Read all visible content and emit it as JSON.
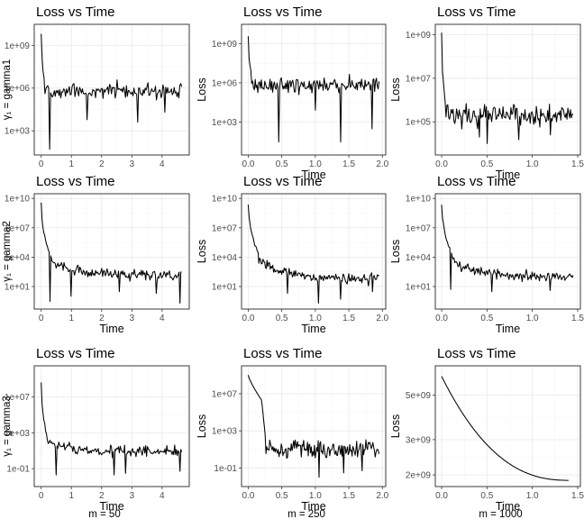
{
  "chart_data": [
    {
      "id": "p00",
      "type": "line",
      "title": "Loss vs Time",
      "xlabel": "",
      "ylabel": "",
      "row_label": "γ₁ = gamma1",
      "col_label": "",
      "y_scale": "log10",
      "xlim": [
        -0.23,
        4.9
      ],
      "ylim": [
        20,
        30000000000.0
      ],
      "xticks": [
        0,
        1,
        2,
        3,
        4
      ],
      "xtick_labels": [
        "0",
        "1",
        "2",
        "3",
        "4"
      ],
      "yticks": [
        1000,
        1000000,
        1000000000
      ],
      "ytick_labels": [
        "1e+03",
        "1e+06",
        "1e+09"
      ],
      "gen": {
        "n": 150,
        "x_end": 4.65,
        "start": 5000000000.0,
        "decay_end": 0.12,
        "decay_to": 2000000.0,
        "mid": 600000.0,
        "spread": 0.55,
        "drops": [
          [
            0.27,
            50
          ],
          [
            3.18,
            4000
          ],
          [
            1.52,
            6000
          ],
          [
            4.1,
            20000
          ]
        ],
        "seed": 11
      }
    },
    {
      "id": "p01",
      "type": "line",
      "title": "Loss vs Time",
      "xlabel": "Time",
      "ylabel": "Loss",
      "row_label": "",
      "col_label": "",
      "y_scale": "log10",
      "xlim": [
        -0.1,
        2.05
      ],
      "ylim": [
        3,
        30000000000.0
      ],
      "xticks": [
        0,
        0.5,
        1,
        1.5,
        2
      ],
      "xtick_labels": [
        "0.0",
        "0.5",
        "1.0",
        "1.5",
        "2.0"
      ],
      "yticks": [
        1000,
        1000000,
        1000000000
      ],
      "ytick_labels": [
        "1e+03",
        "1e+06",
        "1e+09"
      ],
      "gen": {
        "n": 150,
        "x_end": 1.95,
        "start": 5000000000.0,
        "decay_end": 0.05,
        "decay_to": 3000000.0,
        "mid": 700000.0,
        "spread": 0.55,
        "drops": [
          [
            0.45,
            30
          ],
          [
            1.38,
            30
          ],
          [
            1.85,
            300
          ],
          [
            1.0,
            8000
          ]
        ],
        "seed": 23
      }
    },
    {
      "id": "p02",
      "type": "line",
      "title": "Loss vs Time",
      "xlabel": "Time",
      "ylabel": "Loss",
      "row_label": "",
      "col_label": "",
      "y_scale": "log10",
      "xlim": [
        -0.07,
        1.53
      ],
      "ylim": [
        3000,
        3000000000.0
      ],
      "xticks": [
        0,
        0.5,
        1,
        1.5
      ],
      "xtick_labels": [
        "0.0",
        "0.5",
        "1.0",
        "1.5"
      ],
      "yticks": [
        100000,
        10000000,
        1000000000
      ],
      "ytick_labels": [
        "1e+05",
        "1e+07",
        "1e+09"
      ],
      "gen": {
        "n": 150,
        "x_end": 1.45,
        "start": 1000000000.0,
        "decay_end": 0.04,
        "decay_to": 1000000.0,
        "mid": 200000.0,
        "spread": 0.5,
        "drops": [
          [
            0.5,
            10000
          ],
          [
            0.42,
            20000
          ],
          [
            0.85,
            15000
          ],
          [
            1.2,
            25000
          ]
        ],
        "seed": 37
      }
    },
    {
      "id": "p10",
      "type": "line",
      "title": "Loss vs Time",
      "xlabel": "Time",
      "ylabel": "",
      "row_label": "γ₁ = gamma2",
      "col_label": "",
      "y_scale": "log10",
      "xlim": [
        -0.23,
        4.9
      ],
      "ylim": [
        0.05,
        30000000000.0
      ],
      "xticks": [
        0,
        1,
        2,
        3,
        4
      ],
      "xtick_labels": [
        "0",
        "1",
        "2",
        "3",
        "4"
      ],
      "yticks": [
        10,
        10000,
        10000000,
        10000000000
      ],
      "ytick_labels": [
        "1e+01",
        "1e+04",
        "1e+07",
        "1e+10"
      ],
      "gen": {
        "n": 160,
        "x_end": 4.65,
        "start": 3000000000.0,
        "decay_end": 0.35,
        "decay_to": 5000,
        "mid_start": 3000,
        "mid": 150,
        "spread": 0.5,
        "drops": [
          [
            0.3,
            0.3
          ],
          [
            4.6,
            0.2
          ],
          [
            1.0,
            1.0
          ],
          [
            3.8,
            2
          ],
          [
            2.6,
            3
          ]
        ],
        "seed": 41
      }
    },
    {
      "id": "p11",
      "type": "line",
      "title": "Loss vs Time",
      "xlabel": "Time",
      "ylabel": "Loss",
      "row_label": "",
      "col_label": "",
      "y_scale": "log10",
      "xlim": [
        -0.1,
        2.05
      ],
      "ylim": [
        0.05,
        30000000000.0
      ],
      "xticks": [
        0,
        0.5,
        1,
        1.5,
        2
      ],
      "xtick_labels": [
        "0.0",
        "0.5",
        "1.0",
        "1.5",
        "2.0"
      ],
      "yticks": [
        10,
        10000,
        10000000,
        10000000000
      ],
      "ytick_labels": [
        "1e+01",
        "1e+04",
        "1e+07",
        "1e+10"
      ],
      "gen": {
        "n": 160,
        "x_end": 1.95,
        "start": 3000000000.0,
        "decay_end": 0.15,
        "decay_to": 20000,
        "mid_start": 5000,
        "mid": 60,
        "spread": 0.5,
        "drops": [
          [
            1.05,
            0.2
          ],
          [
            1.38,
            0.5
          ],
          [
            0.58,
            2
          ],
          [
            1.85,
            3
          ]
        ],
        "seed": 53
      }
    },
    {
      "id": "p12",
      "type": "line",
      "title": "Loss vs Time",
      "xlabel": "Time",
      "ylabel": "Loss",
      "row_label": "",
      "col_label": "",
      "y_scale": "log10",
      "xlim": [
        -0.07,
        1.53
      ],
      "ylim": [
        0.05,
        30000000000.0
      ],
      "xticks": [
        0,
        0.5,
        1,
        1.5
      ],
      "xtick_labels": [
        "0.0",
        "0.5",
        "1.0",
        "1.5"
      ],
      "yticks": [
        10,
        10000,
        10000000,
        10000000000
      ],
      "ytick_labels": [
        "1e+01",
        "1e+04",
        "1e+07",
        "1e+10"
      ],
      "gen": {
        "n": 160,
        "x_end": 1.45,
        "start": 3000000000.0,
        "decay_end": 0.11,
        "decay_to": 20000,
        "mid_start": 5000,
        "mid": 100,
        "spread": 0.5,
        "drops": [
          [
            0.1,
            5
          ],
          [
            0.55,
            3
          ],
          [
            1.2,
            4
          ]
        ],
        "seed": 61
      }
    },
    {
      "id": "p20",
      "type": "line",
      "title": "Loss vs Time",
      "xlabel": "Time",
      "ylabel": "",
      "row_label": "γ₁ = gamma3",
      "col_label": "m = 50",
      "y_scale": "log10",
      "xlim": [
        -0.23,
        4.9
      ],
      "ylim": [
        0.001,
        30000000000.0
      ],
      "xticks": [
        0,
        1,
        2,
        3,
        4
      ],
      "xtick_labels": [
        "0",
        "1",
        "2",
        "3",
        "4"
      ],
      "yticks": [
        0.1,
        1000,
        10000000
      ],
      "ytick_labels": [
        "1e-01",
        "1e+03",
        "1e+07"
      ],
      "gen": {
        "n": 160,
        "x_end": 4.65,
        "start": 500000000.0,
        "decay_end": 0.2,
        "decay_to": 200,
        "mid_start": 100,
        "mid": 8,
        "spread": 0.55,
        "drops": [
          [
            0.5,
            0.02
          ],
          [
            2.4,
            0.02
          ],
          [
            2.78,
            0.03
          ],
          [
            4.6,
            0.05
          ]
        ],
        "seed": 71
      }
    },
    {
      "id": "p21",
      "type": "line",
      "title": "Loss vs Time",
      "xlabel": "Time",
      "ylabel": "Loss",
      "row_label": "",
      "col_label": "m = 250",
      "y_scale": "log10",
      "xlim": [
        -0.1,
        2.05
      ],
      "ylim": [
        0.001,
        10000000000.0
      ],
      "xticks": [
        0,
        0.5,
        1,
        1.5,
        2
      ],
      "xtick_labels": [
        "0.0",
        "0.5",
        "1.0",
        "1.5",
        "2.0"
      ],
      "yticks": [
        0.1,
        1000,
        10000000
      ],
      "ytick_labels": [
        "1e-01",
        "1e+03",
        "1e+07"
      ],
      "gen": {
        "n": 170,
        "x_end": 1.95,
        "mode": "smooth_drop",
        "start": 1000000000.0,
        "knee": 0.2,
        "knee_val": 2000000.0,
        "drop_end": 0.26,
        "mid": 10,
        "spread": 0.55,
        "drops": [
          [
            1.05,
            0.01
          ],
          [
            1.42,
            0.03
          ],
          [
            1.7,
            0.05
          ]
        ],
        "seed": 83
      }
    },
    {
      "id": "p22",
      "type": "line",
      "title": "Loss vs Time",
      "xlabel": "Time",
      "ylabel": "Loss",
      "row_label": "",
      "col_label": "m = 1000",
      "y_scale": "log10",
      "xlim": [
        -0.07,
        1.53
      ],
      "ylim": [
        1750000000.0,
        7000000000.0
      ],
      "xticks": [
        0,
        0.5,
        1,
        1.5
      ],
      "xtick_labels": [
        "0.0",
        "0.5",
        "1.0",
        "1.5"
      ],
      "yticks": [
        2000000000,
        3000000000,
        5000000000
      ],
      "ytick_labels": [
        "2e+09",
        "3e+09",
        "5e+09"
      ],
      "gen": {
        "n": 160,
        "x_end": 1.4,
        "mode": "smooth",
        "start": 6200000000.0,
        "end": 1880000000.0,
        "seed": 0
      }
    }
  ]
}
